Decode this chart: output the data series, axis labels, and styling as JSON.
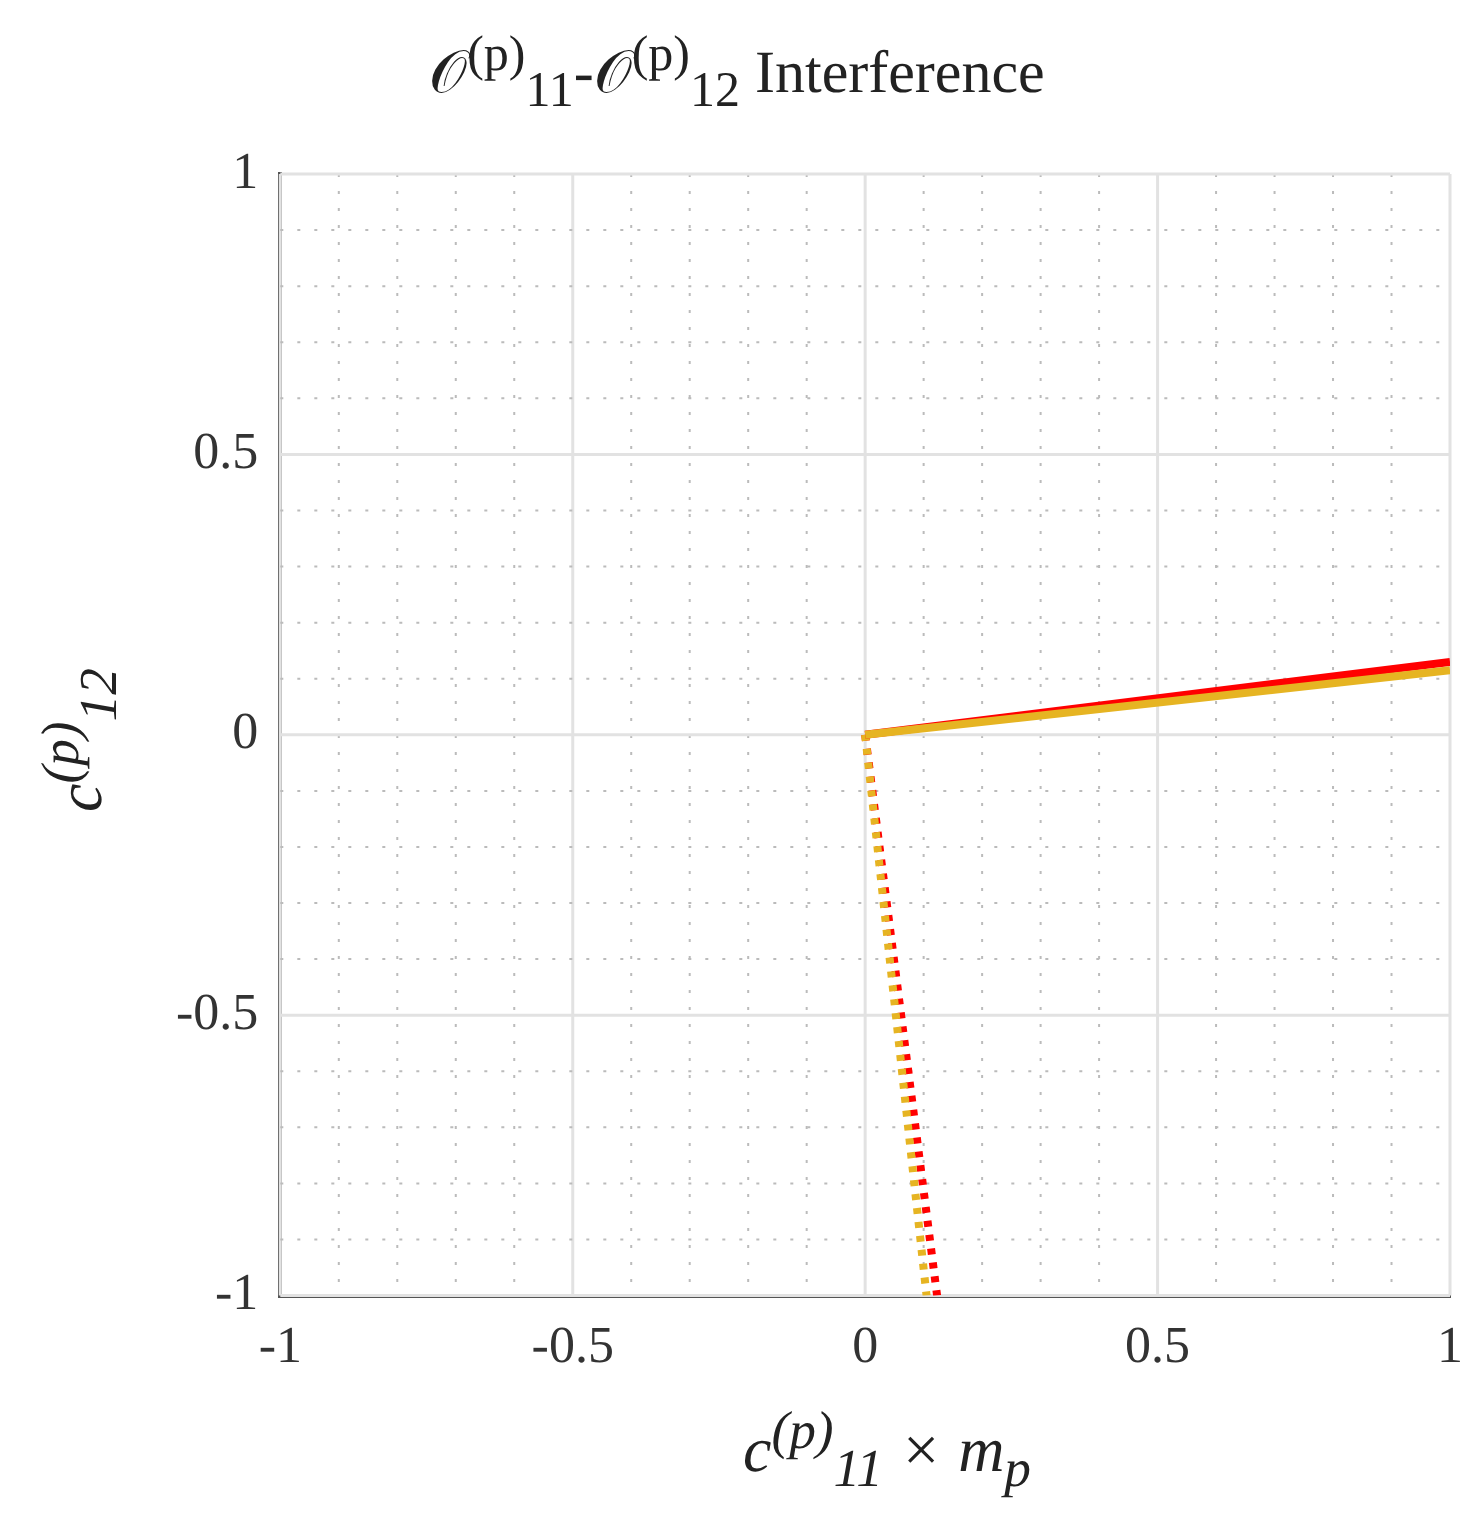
{
  "chart_data": {
    "type": "line",
    "title": "𝒪$^{(p)}$$_{11}$-𝒪$^{(p)}$$_{12}$ Interference",
    "xlabel": "c$^{(p)}$$_{11}$ × m$_{p}$",
    "ylabel": "c$^{(p)}$$_{12}$",
    "xlim": [
      -1,
      1
    ],
    "xticks": [
      -1,
      -0.5,
      0,
      0.5,
      1
    ],
    "ylim": [
      -1,
      1
    ],
    "yticks": [
      -1,
      -0.5,
      0,
      0.5,
      1
    ],
    "grid": true,
    "marker": "none",
    "series": [
      {
        "color": "#e6b422",
        "x": [
          0,
          1
        ],
        "values": [
          0,
          0.115
        ],
        "line_style": "solid"
      },
      {
        "color": "#ff0000",
        "x": [
          0,
          1
        ],
        "values": [
          0,
          0.13
        ],
        "line_style": "solid"
      },
      {
        "color": "#e6b422",
        "x": [
          0,
          0.105
        ],
        "values": [
          0,
          -1
        ],
        "line_style": "dotted"
      },
      {
        "color": "#ff0000",
        "x": [
          0,
          0.123
        ],
        "values": [
          0,
          -1
        ],
        "line_style": "dotted"
      }
    ]
  }
}
